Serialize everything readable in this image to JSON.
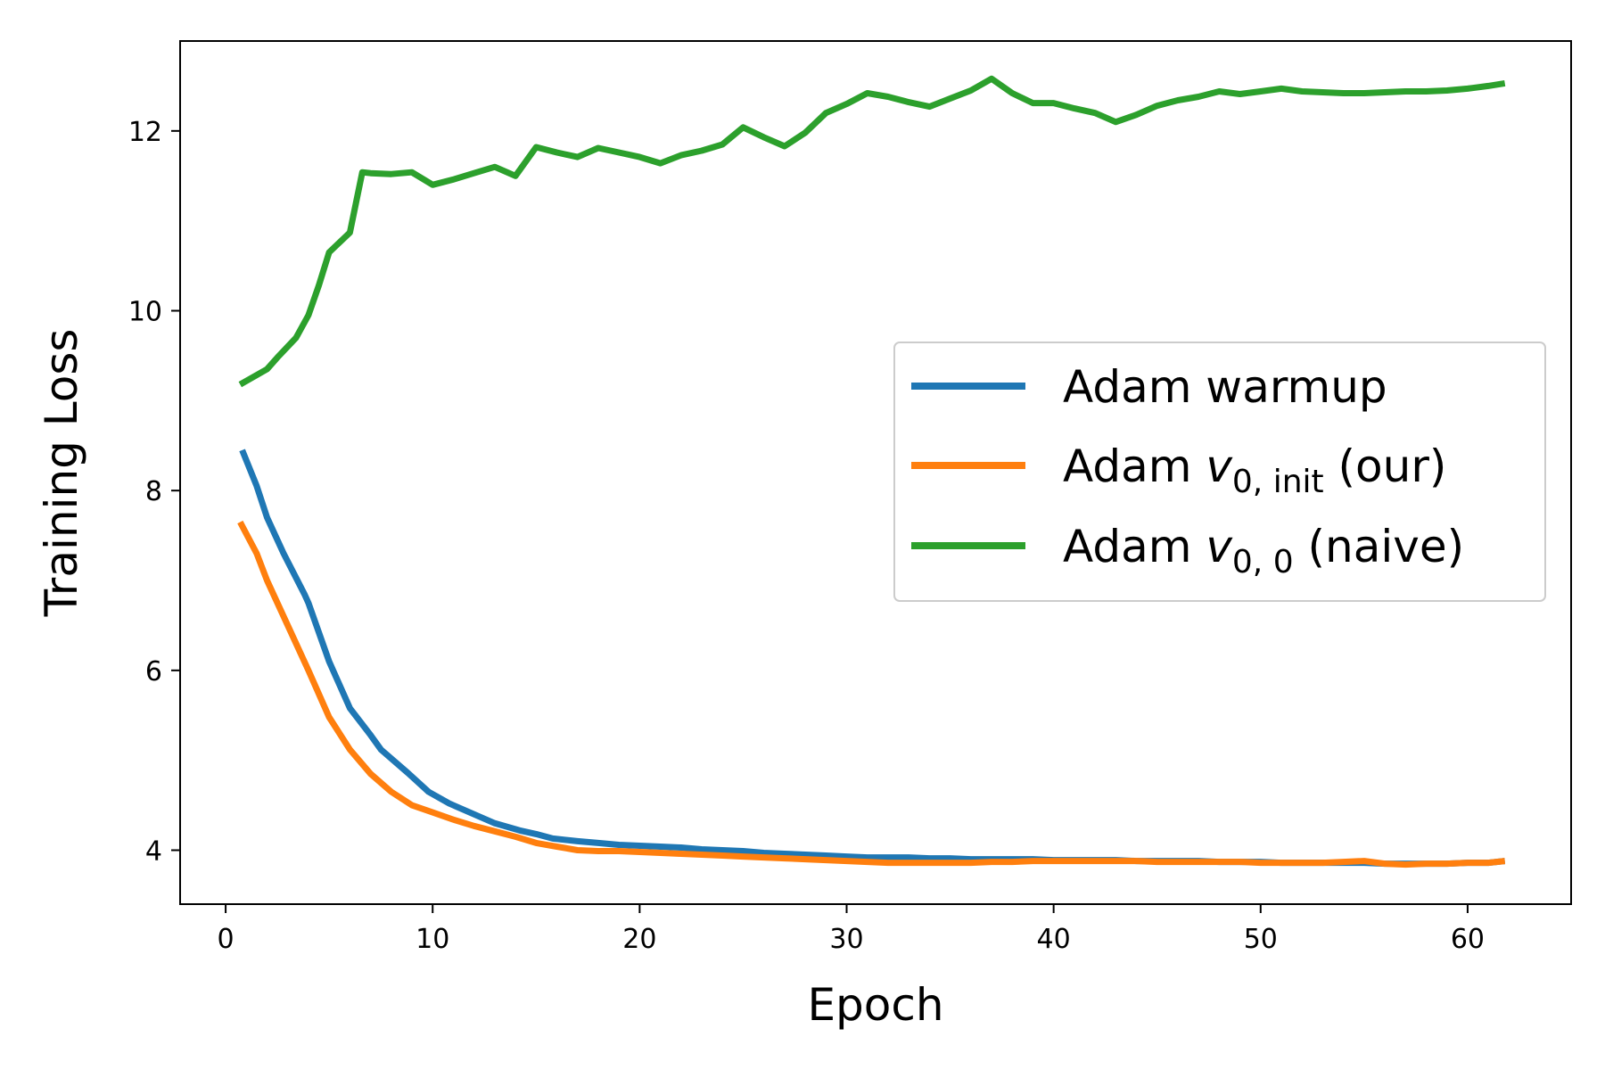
{
  "chart_data": {
    "type": "line",
    "title": "",
    "xlabel": "Epoch",
    "ylabel": "Training Loss",
    "xlim": [
      -2.2,
      65
    ],
    "ylim": [
      3.4,
      13.0
    ],
    "xticks": [
      0,
      10,
      20,
      30,
      40,
      50,
      60
    ],
    "yticks": [
      4,
      6,
      8,
      10,
      12
    ],
    "grid": false,
    "legend_position": "center-right",
    "series": [
      {
        "name": "Adam warmup",
        "legend_main": "Adam warmup",
        "legend_math": "",
        "legend_sub": "",
        "legend_suffix": "",
        "color": "#1f77b4",
        "x": [
          0.8,
          1.5,
          2.0,
          2.8,
          3.8,
          4.0,
          5.0,
          6.0,
          7.0,
          7.5,
          8.8,
          9.8,
          10.8,
          12.0,
          13.0,
          14.2,
          15.0,
          15.8,
          17.0,
          18.0,
          19.0,
          20.0,
          21.0,
          22.0,
          23.0,
          24.0,
          25.0,
          26.0,
          27.0,
          28.0,
          29.0,
          30.0,
          31.0,
          32.0,
          33.0,
          34.0,
          35.0,
          36.0,
          37.0,
          38.0,
          39.0,
          40.0,
          41.0,
          42.0,
          43.0,
          44.0,
          45.0,
          46.0,
          47.0,
          48.0,
          49.0,
          50.0,
          51.0,
          52.0,
          53.0,
          54.0,
          55.0,
          56.0,
          57.0,
          58.0,
          59.0,
          60.0,
          61.0,
          61.8
        ],
        "values": [
          8.45,
          8.05,
          7.7,
          7.3,
          6.85,
          6.75,
          6.1,
          5.58,
          5.28,
          5.12,
          4.86,
          4.65,
          4.52,
          4.4,
          4.3,
          4.22,
          4.18,
          4.13,
          4.1,
          4.08,
          4.06,
          4.05,
          4.04,
          4.03,
          4.01,
          4.0,
          3.99,
          3.97,
          3.96,
          3.95,
          3.94,
          3.93,
          3.92,
          3.92,
          3.92,
          3.91,
          3.91,
          3.9,
          3.9,
          3.9,
          3.9,
          3.89,
          3.89,
          3.89,
          3.89,
          3.88,
          3.88,
          3.88,
          3.88,
          3.87,
          3.87,
          3.87,
          3.86,
          3.86,
          3.86,
          3.86,
          3.86,
          3.85,
          3.85,
          3.85,
          3.85,
          3.86,
          3.86,
          3.88
        ]
      },
      {
        "name": "Adam v0,init (our)",
        "legend_main": "Adam ",
        "legend_math": "v",
        "legend_sub": "0, init",
        "legend_suffix": " (our)",
        "color": "#ff7f0e",
        "x": [
          0.7,
          1.5,
          2.0,
          3.0,
          4.0,
          5.0,
          6.0,
          7.0,
          8.0,
          9.0,
          10.0,
          11.0,
          12.0,
          13.0,
          14.0,
          15.0,
          16.0,
          17.0,
          18.0,
          19.0,
          20.0,
          21.0,
          22.0,
          23.0,
          24.0,
          25.0,
          26.0,
          27.0,
          28.0,
          29.0,
          30.0,
          31.0,
          32.0,
          33.0,
          34.0,
          35.0,
          36.0,
          37.0,
          38.0,
          39.0,
          40.0,
          41.0,
          42.0,
          43.0,
          44.0,
          45.0,
          46.0,
          47.0,
          48.0,
          49.0,
          50.0,
          51.0,
          52.0,
          53.0,
          54.0,
          55.0,
          56.0,
          57.0,
          58.0,
          59.0,
          60.0,
          61.0,
          61.8
        ],
        "values": [
          7.65,
          7.3,
          7.0,
          6.5,
          6.0,
          5.48,
          5.12,
          4.85,
          4.65,
          4.5,
          4.42,
          4.34,
          4.27,
          4.21,
          4.15,
          4.08,
          4.04,
          4.0,
          3.99,
          3.99,
          3.98,
          3.97,
          3.96,
          3.95,
          3.94,
          3.93,
          3.92,
          3.91,
          3.9,
          3.89,
          3.88,
          3.87,
          3.86,
          3.86,
          3.86,
          3.86,
          3.86,
          3.87,
          3.87,
          3.88,
          3.88,
          3.88,
          3.88,
          3.88,
          3.88,
          3.87,
          3.87,
          3.87,
          3.87,
          3.87,
          3.86,
          3.86,
          3.86,
          3.86,
          3.87,
          3.88,
          3.85,
          3.84,
          3.85,
          3.85,
          3.86,
          3.86,
          3.88
        ]
      },
      {
        "name": "Adam v0,0 (naive)",
        "legend_main": "Adam ",
        "legend_math": "v",
        "legend_sub": "0, 0",
        "legend_suffix": " (naive)",
        "color": "#2ca02c",
        "x": [
          0.7,
          2.0,
          2.5,
          3.4,
          4.0,
          4.5,
          5.0,
          6.0,
          6.6,
          7.0,
          8.0,
          9.0,
          10.0,
          11.0,
          12.0,
          13.0,
          14.0,
          15.0,
          16.0,
          17.0,
          18.0,
          19.0,
          20.0,
          21.0,
          22.0,
          23.0,
          24.0,
          25.0,
          26.0,
          27.0,
          28.0,
          29.0,
          30.0,
          31.0,
          32.0,
          33.0,
          34.0,
          35.0,
          36.0,
          37.0,
          38.0,
          39.0,
          40.0,
          41.0,
          42.0,
          43.0,
          44.0,
          45.0,
          46.0,
          47.0,
          48.0,
          49.0,
          50.0,
          51.0,
          52.0,
          53.0,
          54.0,
          55.0,
          56.0,
          57.0,
          58.0,
          59.0,
          60.0,
          61.0,
          61.8
        ],
        "values": [
          9.18,
          9.35,
          9.48,
          9.7,
          9.95,
          10.28,
          10.65,
          10.87,
          11.54,
          11.53,
          11.52,
          11.54,
          11.4,
          11.46,
          11.53,
          11.6,
          11.5,
          11.82,
          11.76,
          11.71,
          11.81,
          11.76,
          11.71,
          11.64,
          11.73,
          11.78,
          11.85,
          12.04,
          11.93,
          11.83,
          11.98,
          12.2,
          12.3,
          12.42,
          12.38,
          12.32,
          12.27,
          12.36,
          12.45,
          12.58,
          12.42,
          12.31,
          12.31,
          12.25,
          12.2,
          12.1,
          12.18,
          12.28,
          12.34,
          12.38,
          12.44,
          12.41,
          12.44,
          12.47,
          12.44,
          12.43,
          12.42,
          12.42,
          12.43,
          12.44,
          12.44,
          12.45,
          12.47,
          12.5,
          12.53
        ]
      }
    ]
  }
}
